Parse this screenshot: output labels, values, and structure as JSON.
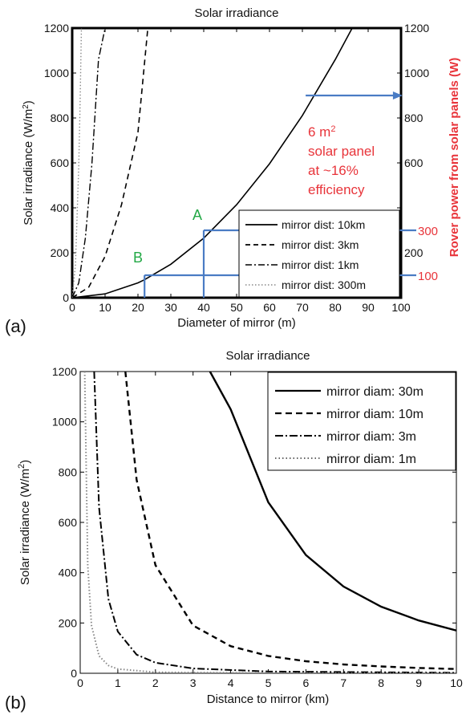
{
  "chart_data": [
    {
      "panel_label": "(a)",
      "type": "line",
      "title": "Solar irradiance",
      "xlabel": "Diameter of mirror (m)",
      "ylabel": "Solar irradiance (W/m²)",
      "y2label": "Rover power from solar panels (W)",
      "xlim": [
        0,
        100
      ],
      "ylim": [
        0,
        1200
      ],
      "x_ticks": [
        "0",
        "10",
        "20",
        "30",
        "40",
        "50",
        "60",
        "70",
        "80",
        "90",
        "100"
      ],
      "y_ticks": [
        "0",
        "200",
        "400",
        "600",
        "800",
        "1000",
        "1200"
      ],
      "y2_ticks": [
        "100",
        "200",
        "300",
        "600",
        "800",
        "1000",
        "1200"
      ],
      "red_ticks": [
        "100",
        "300"
      ],
      "series": [
        {
          "name": "mirror dist: 10km",
          "style": "solid",
          "x": [
            0,
            10,
            20,
            22,
            30,
            40,
            50,
            60,
            70,
            80,
            85
          ],
          "y": [
            0,
            17,
            66,
            80,
            149,
            265,
            414,
            596,
            811,
            1060,
            1196
          ]
        },
        {
          "name": "mirror dist: 3km",
          "style": "dashed",
          "x": [
            0,
            5,
            10,
            15,
            20,
            23
          ],
          "y": [
            0,
            46,
            184,
            414,
            736,
            1200
          ]
        },
        {
          "name": "mirror dist: 1km",
          "style": "dashdot",
          "x": [
            0,
            2,
            4,
            6,
            8,
            10
          ],
          "y": [
            0,
            66,
            265,
            596,
            1060,
            1200
          ]
        },
        {
          "name": "mirror dist: 300m",
          "style": "dotted",
          "x": [
            0,
            1,
            2,
            2.4,
            2.8
          ],
          "y": [
            0,
            147,
            589,
            850,
            1200
          ]
        }
      ],
      "annotations": {
        "point_a": {
          "label": "A",
          "x": 40,
          "y": 300,
          "power": "300"
        },
        "point_b": {
          "label": "B",
          "x": 22,
          "y": 100,
          "power": "100"
        },
        "arrow_y": 900,
        "panel_note": [
          "6 m²",
          "solar panel",
          "at ~16%",
          "efficiency"
        ]
      },
      "colors": {
        "annotation_red": "#e8343a",
        "annotation_green": "#22a845",
        "guide_blue": "#4a7cc4"
      }
    },
    {
      "panel_label": "(b)",
      "type": "line",
      "title": "Solar irradiance",
      "xlabel": "Distance to mirror (km)",
      "ylabel": "Solar irradiance (W/m²)",
      "xlim": [
        0,
        10
      ],
      "ylim": [
        0,
        1200
      ],
      "x_ticks": [
        "0",
        "1",
        "2",
        "3",
        "4",
        "5",
        "6",
        "7",
        "8",
        "9",
        "10"
      ],
      "y_ticks": [
        "0",
        "200",
        "400",
        "600",
        "800",
        "1000",
        "1200"
      ],
      "legend_position": "top-right",
      "series": [
        {
          "name": "mirror diam: 30m",
          "style": "solid",
          "x": [
            3.45,
            4,
            5,
            6,
            7,
            8,
            9,
            10
          ],
          "y": [
            1200,
            1050,
            680,
            470,
            345,
            265,
            210,
            170
          ]
        },
        {
          "name": "mirror diam: 10m",
          "style": "dashed",
          "x": [
            1.2,
            1.5,
            2,
            3,
            4,
            5,
            6,
            7,
            8,
            9,
            10
          ],
          "y": [
            1200,
            770,
            430,
            190,
            108,
            69,
            48,
            35,
            27,
            21,
            17
          ]
        },
        {
          "name": "mirror diam: 3m",
          "style": "dashdot",
          "x": [
            0.37,
            0.5,
            0.75,
            1,
            1.5,
            2,
            3,
            5,
            10
          ],
          "y": [
            1200,
            660,
            295,
            166,
            74,
            42,
            19,
            7,
            2
          ]
        },
        {
          "name": "mirror diam: 1m",
          "style": "dotted",
          "x": [
            0.12,
            0.2,
            0.3,
            0.5,
            0.75,
            1,
            2,
            5,
            10
          ],
          "y": [
            1200,
            430,
            190,
            69,
            31,
            17,
            4,
            1,
            0
          ]
        }
      ]
    }
  ]
}
